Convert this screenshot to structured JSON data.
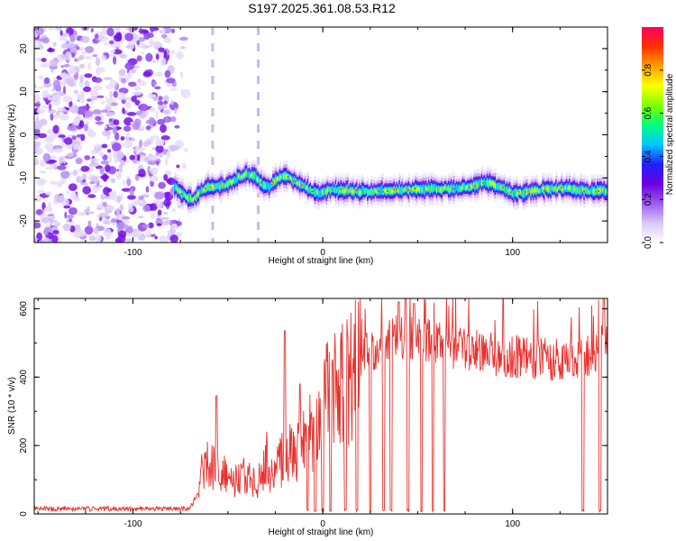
{
  "chart_data": [
    {
      "type": "heatmap",
      "title": "S197.2025.361.08.53.R12",
      "xlabel": "Height of straight line (km)",
      "ylabel": "Frequency (Hz)",
      "xlim": [
        -152,
        150
      ],
      "ylim": [
        -25,
        25
      ],
      "xticks": [
        -100,
        0,
        100
      ],
      "xtick_labels": [
        "-100",
        "0",
        "100"
      ],
      "yticks": [
        -20,
        -10,
        0,
        10,
        20
      ],
      "ytick_labels": [
        "-20",
        "-10",
        "0",
        "10",
        "20"
      ],
      "noise_region_x": [
        -152,
        -78
      ],
      "dashed_lines_x": [
        -58,
        -34
      ],
      "ridge": {
        "x": [
          -78,
          -72,
          -68,
          -64,
          -60,
          -55,
          -50,
          -45,
          -40,
          -36,
          -32,
          -28,
          -24,
          -20,
          -16,
          -12,
          -8,
          -4,
          0,
          5,
          10,
          20,
          30,
          40,
          50,
          60,
          70,
          80,
          85,
          90,
          95,
          100,
          105,
          110,
          120,
          130,
          140,
          150
        ],
        "y": [
          -12,
          -14.5,
          -15,
          -13,
          -12,
          -12,
          -11.5,
          -10,
          -9,
          -9.5,
          -11.5,
          -12,
          -10,
          -9.5,
          -10.5,
          -11.5,
          -12.5,
          -13.5,
          -13.5,
          -12.5,
          -12.8,
          -13.2,
          -13,
          -12.8,
          -12.6,
          -12.5,
          -12.5,
          -11.8,
          -11,
          -11.5,
          -12.5,
          -13.5,
          -13.5,
          -13,
          -12.5,
          -12.5,
          -13,
          -13
        ]
      },
      "colorbar": {
        "label": "Normalized spectral amplitude",
        "range": [
          0,
          1
        ],
        "ticks": [
          0,
          0.2,
          0.4,
          0.6,
          0.8
        ],
        "tick_labels": [
          "0.0",
          "0.2",
          "0.4",
          "0.6",
          "0.8"
        ],
        "colors": [
          "#ffffff",
          "#d9c8f5",
          "#9b5cf0",
          "#6a00e0",
          "#2020ff",
          "#00c8ff",
          "#00ff80",
          "#7fff00",
          "#ffff00",
          "#ffa000",
          "#ff3000",
          "#ff0060"
        ]
      }
    },
    {
      "type": "line",
      "title": "",
      "xlabel": "Height of straight line (km)",
      "ylabel": "SNR (10 * v/v)",
      "xlim": [
        -152,
        150
      ],
      "ylim": [
        0,
        630
      ],
      "xticks": [
        -100,
        0,
        100
      ],
      "xtick_labels": [
        "-100",
        "0",
        "100"
      ],
      "yticks": [
        0,
        200,
        400,
        600
      ],
      "ytick_labels": [
        "0",
        "200",
        "400",
        "600"
      ],
      "color": "#e8322f",
      "envelope": {
        "x": [
          -152,
          -80,
          -70,
          -66,
          -60,
          -55,
          -50,
          -45,
          -40,
          -35,
          -30,
          -25,
          -20,
          -15,
          -10,
          -5,
          0,
          5,
          10,
          15,
          20,
          25,
          30,
          40,
          50,
          60,
          70,
          80,
          90,
          100,
          110,
          120,
          130,
          140,
          145,
          150
        ],
        "y": [
          15,
          15,
          15,
          60,
          150,
          120,
          100,
          90,
          110,
          80,
          140,
          100,
          180,
          160,
          200,
          240,
          300,
          330,
          360,
          400,
          440,
          470,
          490,
          510,
          500,
          495,
          480,
          470,
          460,
          455,
          450,
          445,
          450,
          455,
          480,
          500
        ]
      },
      "spikes": [
        {
          "x": -56,
          "y": 345
        },
        {
          "x": -20,
          "y": 535
        },
        {
          "x": -12,
          "y": 380
        },
        {
          "x": 40,
          "y": 620
        },
        {
          "x": 48,
          "y": 615
        },
        {
          "x": 148,
          "y": 630
        }
      ],
      "dropouts_x": [
        -8,
        -4,
        0,
        4,
        12,
        18,
        25,
        32,
        36,
        45,
        52,
        58,
        64,
        137,
        146
      ]
    }
  ]
}
